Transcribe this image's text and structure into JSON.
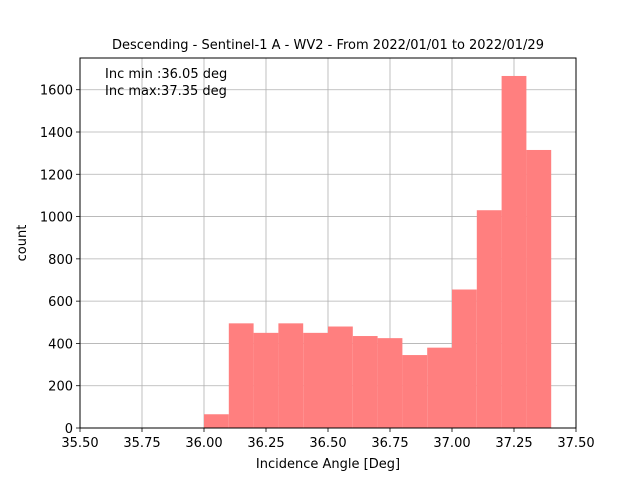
{
  "chart_data": {
    "type": "bar",
    "title": "Descending - Sentinel-1 A - WV2 - From 2022/01/01 to 2022/01/29",
    "xlabel": "Incidence Angle [Deg]",
    "ylabel": "count",
    "xlim": [
      35.5,
      37.5
    ],
    "ylim": [
      0,
      1750
    ],
    "grid": true,
    "bar_color": "#ff7f7f",
    "grid_color": "#b0b0b0",
    "x_ticks": [
      35.5,
      35.75,
      36.0,
      36.25,
      36.5,
      36.75,
      37.0,
      37.25,
      37.5
    ],
    "x_tick_labels": [
      "35.50",
      "35.75",
      "36.00",
      "36.25",
      "36.50",
      "36.75",
      "37.00",
      "37.25",
      "37.50"
    ],
    "y_ticks": [
      0,
      200,
      400,
      600,
      800,
      1000,
      1200,
      1400,
      1600
    ],
    "y_tick_labels": [
      "0",
      "200",
      "400",
      "600",
      "800",
      "1000",
      "1200",
      "1400",
      "1600"
    ],
    "bins": [
      {
        "start": 36.0,
        "end": 36.1,
        "count": 65
      },
      {
        "start": 36.1,
        "end": 36.2,
        "count": 495
      },
      {
        "start": 36.2,
        "end": 36.3,
        "count": 450
      },
      {
        "start": 36.3,
        "end": 36.4,
        "count": 495
      },
      {
        "start": 36.4,
        "end": 36.5,
        "count": 450
      },
      {
        "start": 36.5,
        "end": 36.6,
        "count": 480
      },
      {
        "start": 36.6,
        "end": 36.7,
        "count": 435
      },
      {
        "start": 36.7,
        "end": 36.8,
        "count": 425
      },
      {
        "start": 36.8,
        "end": 36.9,
        "count": 345
      },
      {
        "start": 36.9,
        "end": 37.0,
        "count": 380
      },
      {
        "start": 37.0,
        "end": 37.1,
        "count": 655
      },
      {
        "start": 37.1,
        "end": 37.2,
        "count": 1030
      },
      {
        "start": 37.2,
        "end": 37.3,
        "count": 1665
      },
      {
        "start": 37.3,
        "end": 37.4,
        "count": 1315
      }
    ],
    "annotations": [
      "Inc min :36.05 deg",
      "Inc max:37.35 deg"
    ]
  }
}
